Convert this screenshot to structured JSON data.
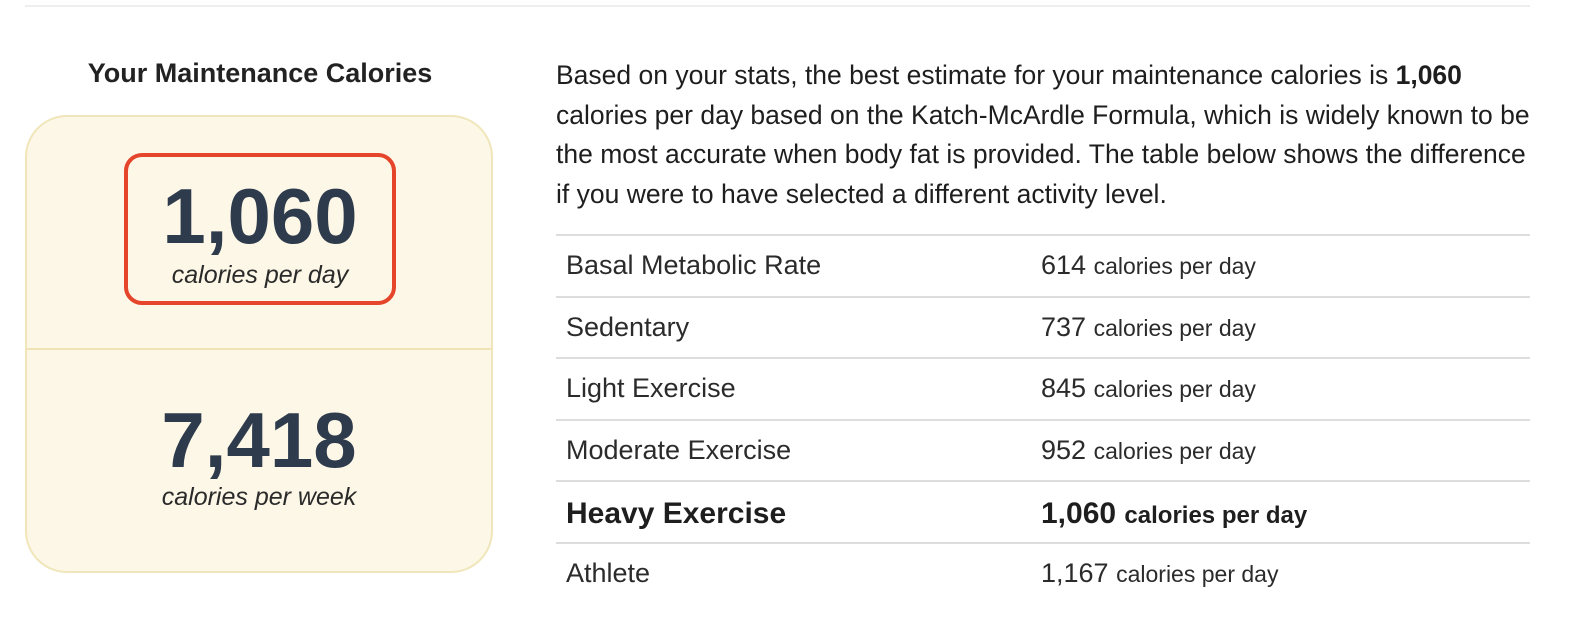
{
  "summary": {
    "title": "Your Maintenance Calories",
    "daily_value": "1,060",
    "daily_caption": "calories per day",
    "weekly_value": "7,418",
    "weekly_caption": "calories per week"
  },
  "description": {
    "part1": "Based on your stats, the best estimate for your maintenance calories is ",
    "bold_value": "1,060",
    "part2": " calories per day based on the Katch-McArdle Formula, which is widely known to be the most accurate when body fat is provided. The table below shows the difference if you were to have selected a different activity level."
  },
  "table": {
    "rows": [
      {
        "name": "Basal Metabolic Rate",
        "value": "614",
        "unit": "calories per day"
      },
      {
        "name": "Sedentary",
        "value": "737",
        "unit": "calories per day"
      },
      {
        "name": "Light Exercise",
        "value": "845",
        "unit": "calories per day"
      },
      {
        "name": "Moderate Exercise",
        "value": "952",
        "unit": "calories per day"
      },
      {
        "name": "Heavy Exercise",
        "value": "1,060",
        "unit": "calories per day"
      },
      {
        "name": "Athlete",
        "value": "1,167",
        "unit": "calories per day"
      }
    ]
  },
  "colors": {
    "card_background": "#fcf7e6",
    "highlight_border": "#e5452b",
    "number_color": "#2e3b4c"
  }
}
